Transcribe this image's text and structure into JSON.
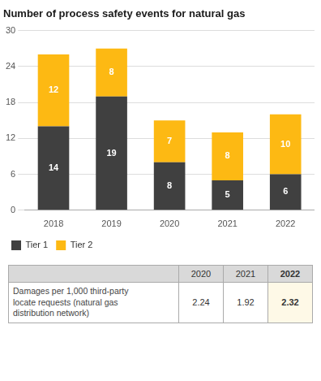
{
  "chart_data": [
    {
      "type": "bar",
      "title": "Number of process safety events for natural gas",
      "categories": [
        "2018",
        "2019",
        "2020",
        "2021",
        "2022"
      ],
      "series": [
        {
          "name": "Tier 1",
          "color": "#404040",
          "values": [
            14,
            19,
            8,
            5,
            6
          ]
        },
        {
          "name": "Tier 2",
          "color": "#FDB913",
          "values": [
            12,
            8,
            7,
            8,
            10
          ]
        }
      ],
      "stacked": true,
      "data_labels": true,
      "ylim": [
        0,
        30
      ],
      "yticks": [
        0,
        6,
        12,
        18,
        24,
        30
      ],
      "grid": true,
      "legend": "bottom"
    },
    {
      "type": "table",
      "categories": [
        "2020",
        "2021",
        "2022"
      ],
      "series": [
        {
          "name": "Damages per 1,000 third-party\nlocate requests (natural gas\ndistribution network)",
          "values": [
            2.24,
            1.92,
            2.32
          ]
        }
      ]
    }
  ]
}
